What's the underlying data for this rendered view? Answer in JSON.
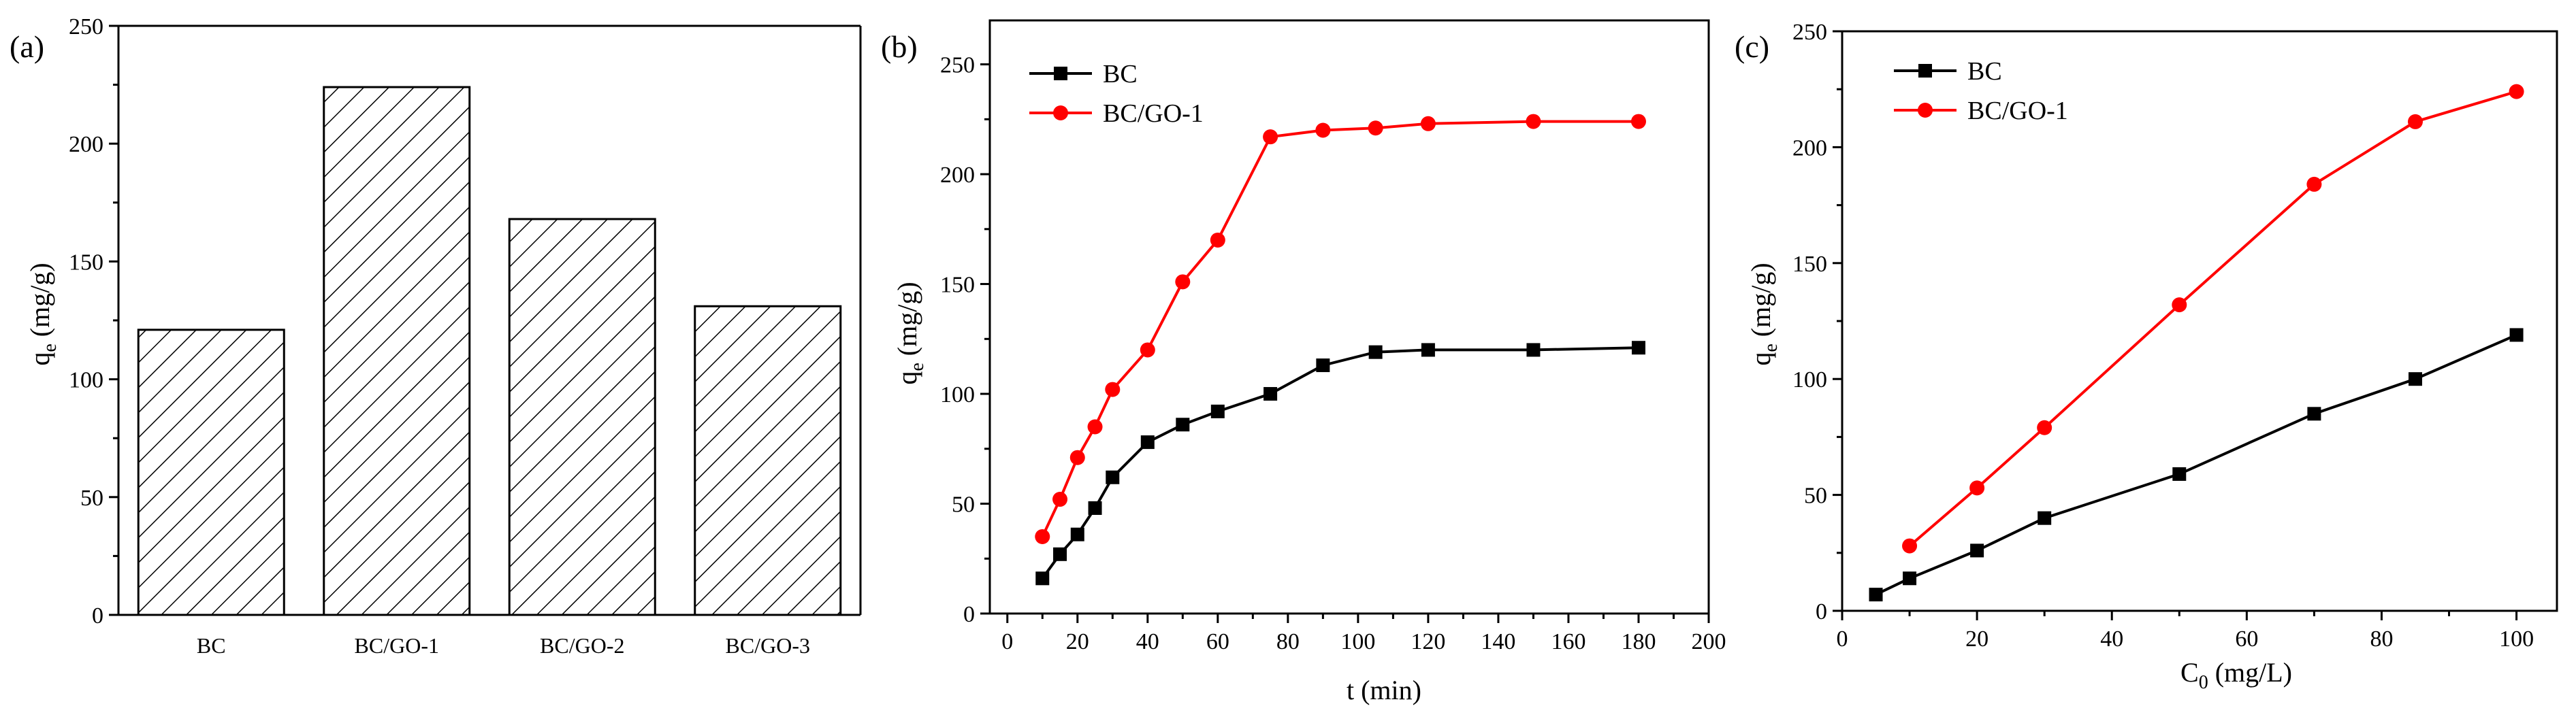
{
  "chart_data": [
    {
      "panel": "(a)",
      "type": "bar",
      "title": "",
      "ylabel": "q",
      "ylabel_sub": "e",
      "ylabel_unit": " (mg/g)",
      "xlabel": "",
      "ylim": [
        0,
        250
      ],
      "yticks": [
        0,
        50,
        100,
        150,
        200,
        250
      ],
      "categories": [
        "BC",
        "BC/GO-1",
        "BC/GO-2",
        "BC/GO-3"
      ],
      "values": [
        121,
        224,
        168,
        131
      ],
      "pattern": "diagonal-hatch"
    },
    {
      "panel": "(b)",
      "type": "line",
      "xlabel": "t (min)",
      "ylabel": "q",
      "ylabel_sub": "e",
      "ylabel_unit": " (mg/g)",
      "xlim": [
        -5,
        200
      ],
      "ylim": [
        0,
        270
      ],
      "xticks": [
        0,
        20,
        40,
        60,
        80,
        100,
        120,
        140,
        160,
        180,
        200
      ],
      "yticks": [
        0,
        50,
        100,
        150,
        200,
        250
      ],
      "legend_position": "top-left",
      "series": [
        {
          "name": "BC",
          "color": "#000000",
          "marker": "square",
          "x": [
            10,
            15,
            20,
            25,
            30,
            40,
            50,
            60,
            75,
            90,
            105,
            120,
            150,
            180
          ],
          "y": [
            16,
            27,
            36,
            48,
            62,
            78,
            86,
            92,
            100,
            113,
            119,
            120,
            120,
            121
          ]
        },
        {
          "name": "BC/GO-1",
          "color": "#ff0000",
          "marker": "circle",
          "x": [
            10,
            15,
            20,
            25,
            30,
            40,
            50,
            60,
            75,
            90,
            105,
            120,
            150,
            180
          ],
          "y": [
            35,
            52,
            71,
            85,
            102,
            120,
            151,
            170,
            217,
            220,
            221,
            223,
            224,
            224
          ]
        }
      ]
    },
    {
      "panel": "(c)",
      "type": "line",
      "xlabel": "C",
      "xlabel_sub": "0",
      "xlabel_unit": " (mg/L)",
      "ylabel": "q",
      "ylabel_sub": "e",
      "ylabel_unit": " (mg/g)",
      "xlim": [
        0,
        106
      ],
      "ylim": [
        0,
        250
      ],
      "xticks": [
        0,
        20,
        40,
        60,
        80,
        100
      ],
      "yticks": [
        0,
        50,
        100,
        150,
        200,
        250
      ],
      "legend_position": "top-left",
      "series": [
        {
          "name": "BC",
          "color": "#000000",
          "marker": "square",
          "x": [
            5,
            10,
            20,
            30,
            50,
            70,
            85,
            100
          ],
          "y": [
            7,
            14,
            26,
            40,
            59,
            85,
            100,
            119
          ]
        },
        {
          "name": "BC/GO-1",
          "color": "#ff0000",
          "marker": "circle",
          "x": [
            10,
            20,
            30,
            50,
            70,
            85,
            100
          ],
          "y": [
            28,
            53,
            79,
            132,
            184,
            211,
            224
          ]
        }
      ]
    }
  ]
}
